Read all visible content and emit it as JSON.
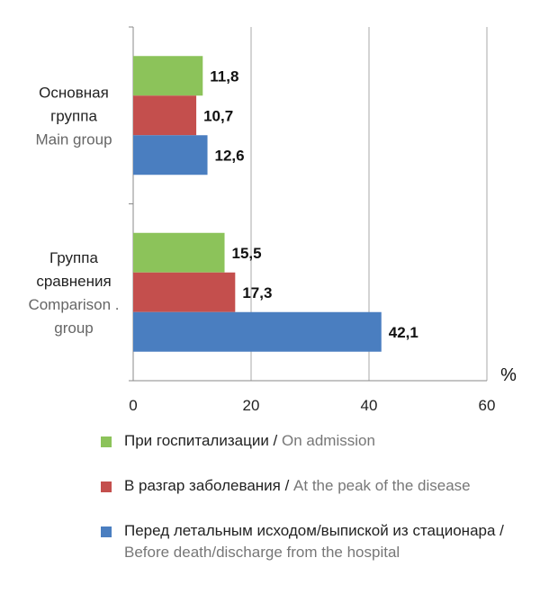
{
  "chart_data": {
    "type": "bar",
    "orientation": "horizontal",
    "unit": "%",
    "xlim": [
      0,
      60
    ],
    "x_ticks": [
      "0",
      "20",
      "40",
      "60"
    ],
    "grid": "vertical",
    "legend_position": "bottom",
    "categories": [
      {
        "ru_lines": [
          "Основная",
          "группа"
        ],
        "en_lines": [
          "Main group"
        ]
      },
      {
        "ru_lines": [
          "Группа",
          "сравнения"
        ],
        "en_lines": [
          "Comparison .",
          "group"
        ]
      }
    ],
    "series": [
      {
        "color": "#8cc35a",
        "values": [
          11.8,
          15.5
        ],
        "labels": [
          "11,8",
          "15,5"
        ]
      },
      {
        "color": "#c44f4d",
        "values": [
          10.7,
          17.3
        ],
        "labels": [
          "10,7",
          "17,3"
        ]
      },
      {
        "color": "#4a7ec0",
        "values": [
          12.6,
          42.1
        ],
        "labels": [
          "12,6",
          "42,1"
        ]
      }
    ]
  },
  "legend": [
    {
      "ru": "При госпитализации /",
      "en": "On admission"
    },
    {
      "ru": "В разгар заболевания /",
      "en": "At the peak of the disease"
    },
    {
      "ru": "Перед летальным исходом/выпиской из стационара /",
      "en": "Before death/discharge from the hospital"
    }
  ]
}
